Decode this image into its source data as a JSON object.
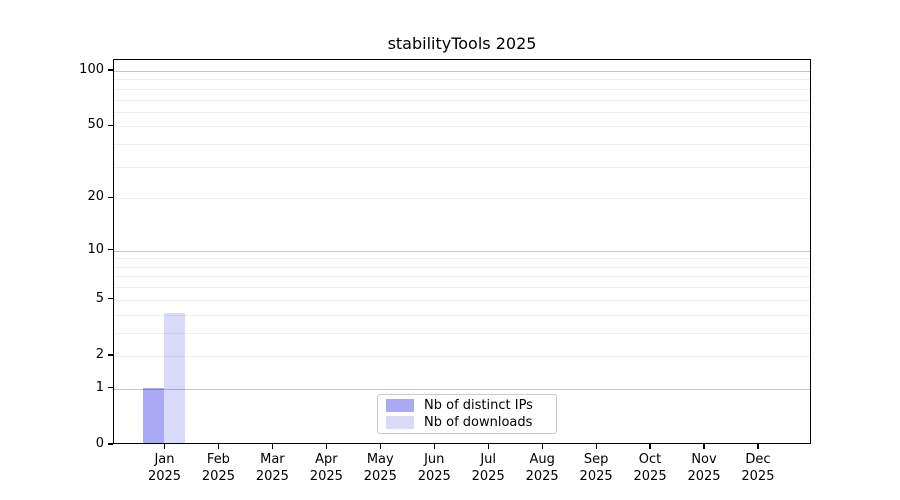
{
  "figure": {
    "background": "#ffffff",
    "frame_color": "#000000"
  },
  "chart_data": {
    "type": "bar",
    "title": "stabilityTools 2025",
    "year": "2025",
    "categories": [
      "Jan",
      "Feb",
      "Mar",
      "Apr",
      "May",
      "Jun",
      "Jul",
      "Aug",
      "Sep",
      "Oct",
      "Nov",
      "Dec"
    ],
    "series": [
      {
        "name": "Nb of distinct IPs",
        "color_hex": "#a9a9f4",
        "fill": "rgba(10,10,225,0.35)",
        "values": [
          1,
          0,
          0,
          0,
          0,
          0,
          0,
          0,
          0,
          0,
          0,
          0
        ]
      },
      {
        "name": "Nb of downloads",
        "color_hex": "#d9d9f9",
        "fill": "rgba(10,10,225,0.15)",
        "values": [
          4,
          0,
          0,
          0,
          0,
          0,
          0,
          0,
          0,
          0,
          0,
          0
        ]
      }
    ],
    "xlabel": "",
    "ylabel": "",
    "yscale": "log1p",
    "ylim": [
      0,
      114.7
    ],
    "yticks": [
      0,
      1,
      2,
      5,
      10,
      20,
      50,
      100
    ],
    "y_major_gridlines": [
      1,
      10,
      100
    ],
    "y_minor_gridlines": [
      2,
      3,
      4,
      5,
      6,
      7,
      8,
      9,
      20,
      30,
      40,
      50,
      60,
      70,
      80,
      90
    ],
    "grid_major_color": "#c4c4c4",
    "grid_minor_color": "#efefef",
    "legend_position": "lower center",
    "legend_border_color": "#cccccc"
  }
}
